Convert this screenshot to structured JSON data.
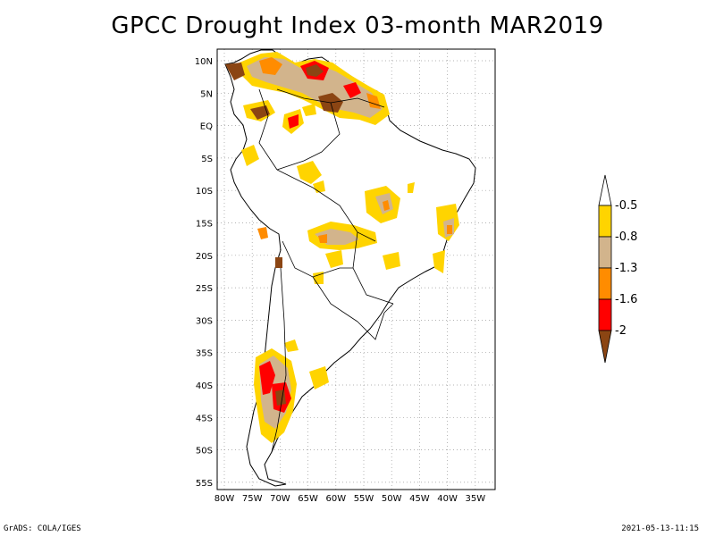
{
  "title": "GPCC Drought Index 03-month MAR2019",
  "map": {
    "lat_labels": [
      "10N",
      "5N",
      "EQ",
      "5S",
      "10S",
      "15S",
      "20S",
      "25S",
      "30S",
      "35S",
      "40S",
      "45S",
      "50S",
      "55S"
    ],
    "lon_labels": [
      "80W",
      "75W",
      "70W",
      "65W",
      "60W",
      "55W",
      "50W",
      "45W",
      "40W",
      "35W"
    ],
    "grid": "dotted"
  },
  "legend": {
    "labels": [
      "-0.5",
      "-0.8",
      "-1.3",
      "-1.6",
      "-2"
    ],
    "colors": [
      "#ffffff",
      "#ffd400",
      "#d2b48c",
      "#ff8c00",
      "#ff0000",
      "#8b4513"
    ]
  },
  "footer": {
    "left": "GrADS: COLA/IGES",
    "right": "2021-05-13-11:15"
  }
}
